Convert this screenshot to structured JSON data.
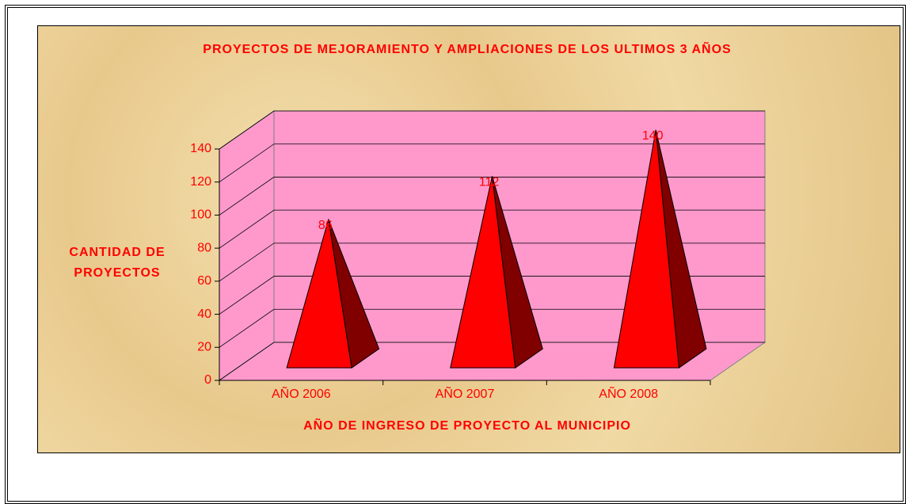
{
  "chart_data": {
    "type": "pyramid3d",
    "title": "PROYECTOS DE MEJORAMIENTO Y AMPLIACIONES DE LOS ULTIMOS 3 AÑOS",
    "x_label": "AÑO DE INGRESO DE PROYECTO AL MUNICIPIO",
    "y_label": "CANTIDAD DE PROYECTOS",
    "categories": [
      "AÑO 2006",
      "AÑO 2007",
      "AÑO 2008"
    ],
    "values": [
      86,
      112,
      140
    ],
    "color": "#ff0000",
    "ylim": [
      0,
      140
    ],
    "yticks": [
      0,
      20,
      40,
      60,
      80,
      100,
      120,
      140
    ],
    "grid": true
  }
}
